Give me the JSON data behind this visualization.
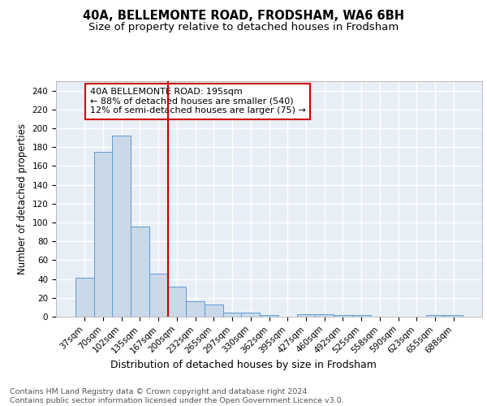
{
  "title": "40A, BELLEMONTE ROAD, FRODSHAM, WA6 6BH",
  "subtitle": "Size of property relative to detached houses in Frodsham",
  "xlabel": "Distribution of detached houses by size in Frodsham",
  "ylabel": "Number of detached properties",
  "bar_labels": [
    "37sqm",
    "70sqm",
    "102sqm",
    "135sqm",
    "167sqm",
    "200sqm",
    "232sqm",
    "265sqm",
    "297sqm",
    "330sqm",
    "362sqm",
    "395sqm",
    "427sqm",
    "460sqm",
    "492sqm",
    "525sqm",
    "558sqm",
    "590sqm",
    "623sqm",
    "655sqm",
    "688sqm"
  ],
  "bar_values": [
    41,
    175,
    192,
    96,
    46,
    32,
    16,
    13,
    4,
    4,
    2,
    0,
    3,
    3,
    2,
    2,
    0,
    0,
    0,
    2,
    2
  ],
  "bar_color": "#c9d9e8",
  "bar_edge_color": "#5b9bd5",
  "vline_x_index": 5,
  "vline_color": "#cc0000",
  "annotation_text": "40A BELLEMONTE ROAD: 195sqm\n← 88% of detached houses are smaller (540)\n12% of semi-detached houses are larger (75) →",
  "annotation_box_color": "#ffffff",
  "annotation_box_edge": "#cc0000",
  "ylim": [
    0,
    250
  ],
  "yticks": [
    0,
    20,
    40,
    60,
    80,
    100,
    120,
    140,
    160,
    180,
    200,
    220,
    240
  ],
  "footer": "Contains HM Land Registry data © Crown copyright and database right 2024.\nContains public sector information licensed under the Open Government Licence v3.0.",
  "background_color": "#e8eef5",
  "grid_color": "#ffffff",
  "title_fontsize": 10.5,
  "subtitle_fontsize": 9.5,
  "xlabel_fontsize": 9,
  "ylabel_fontsize": 8.5,
  "tick_fontsize": 7.5,
  "annotation_fontsize": 8,
  "footer_fontsize": 6.8
}
